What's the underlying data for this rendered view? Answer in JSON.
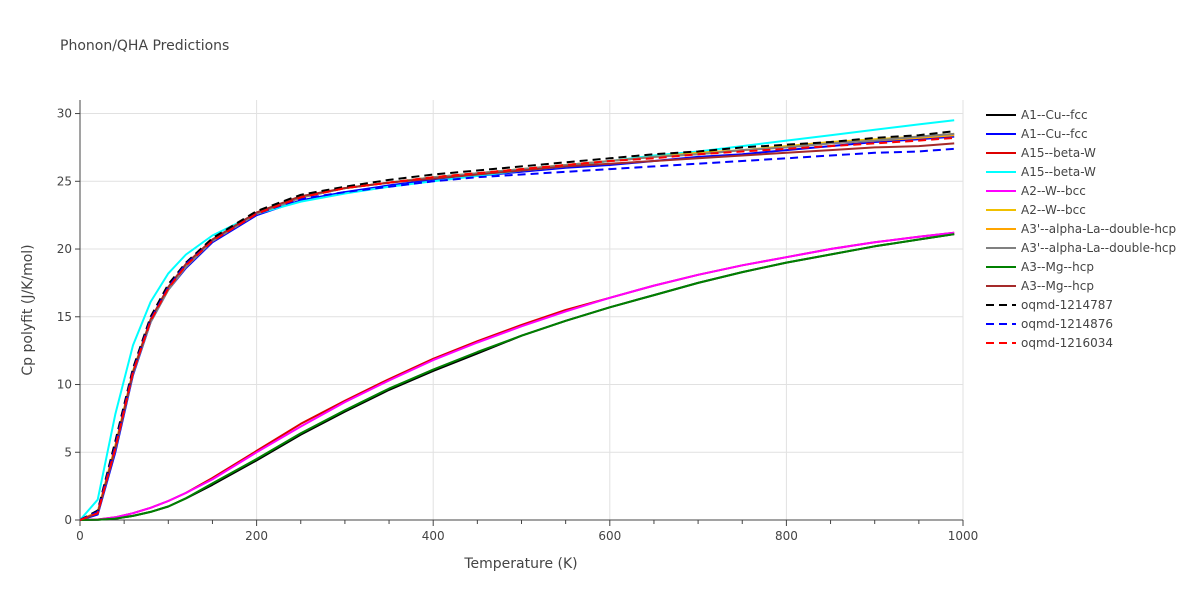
{
  "chart_data": {
    "type": "line",
    "title": "Phonon/QHA Predictions",
    "xlabel": "Temperature (K)",
    "ylabel": "Cp polyfit (J/K/mol)",
    "xlim": [
      0,
      1000
    ],
    "ylim": [
      0,
      31
    ],
    "xticks": [
      0,
      200,
      400,
      600,
      800,
      1000
    ],
    "yticks": [
      0,
      5,
      10,
      15,
      20,
      25,
      30
    ],
    "grid": true,
    "legend_position": "right",
    "series": [
      {
        "name": "A1--Cu--fcc",
        "color": "#000000",
        "dash": "solid",
        "x": [
          0,
          20,
          40,
          60,
          80,
          100,
          120,
          150,
          200,
          250,
          300,
          350,
          400,
          450,
          500,
          550,
          600,
          650,
          700,
          750,
          800,
          850,
          900,
          950,
          990
        ],
        "y": [
          0,
          0.02,
          0.1,
          0.3,
          0.6,
          1.0,
          1.6,
          2.6,
          4.4,
          6.3,
          8.0,
          9.6,
          11.0,
          12.3,
          13.6,
          14.7,
          15.7,
          16.6,
          17.5,
          18.3,
          19.0,
          19.6,
          20.2,
          20.7,
          21.1
        ]
      },
      {
        "name": "A1--Cu--fcc",
        "color": "#0000ff",
        "dash": "solid",
        "x": [
          0,
          20,
          40,
          60,
          80,
          100,
          120,
          150,
          200,
          250,
          300,
          350,
          400,
          450,
          500,
          550,
          600,
          650,
          700,
          750,
          800,
          850,
          900,
          950,
          990
        ],
        "y": [
          0,
          0.4,
          5.0,
          10.7,
          14.6,
          17.0,
          18.6,
          20.5,
          22.5,
          23.6,
          24.2,
          24.7,
          25.1,
          25.4,
          25.7,
          26.0,
          26.2,
          26.5,
          26.8,
          27.0,
          27.3,
          27.6,
          27.9,
          28.1,
          28.3
        ]
      },
      {
        "name": "A15--beta-W",
        "color": "#dd0000",
        "dash": "solid",
        "x": [
          0,
          20,
          40,
          60,
          80,
          100,
          120,
          150,
          200,
          250,
          300,
          350,
          400,
          450,
          500,
          550,
          600,
          650,
          700,
          750,
          800,
          850,
          900,
          950,
          990
        ],
        "y": [
          0,
          0.04,
          0.2,
          0.5,
          0.9,
          1.4,
          2.0,
          3.1,
          5.1,
          7.1,
          8.8,
          10.4,
          11.9,
          13.2,
          14.4,
          15.5,
          16.4,
          17.3,
          18.1,
          18.8,
          19.4,
          20.0,
          20.5,
          20.9,
          21.2
        ]
      },
      {
        "name": "A15--beta-W",
        "color": "#00ffff",
        "dash": "solid",
        "x": [
          0,
          20,
          40,
          60,
          80,
          100,
          120,
          150,
          200,
          250,
          300,
          350,
          400,
          450,
          500,
          550,
          600,
          650,
          700,
          750,
          800,
          850,
          900,
          950,
          990
        ],
        "y": [
          0,
          1.5,
          7.8,
          12.9,
          16.1,
          18.2,
          19.6,
          21.0,
          22.6,
          23.5,
          24.1,
          24.6,
          25.0,
          25.4,
          25.8,
          26.1,
          26.5,
          26.9,
          27.2,
          27.6,
          28.0,
          28.4,
          28.8,
          29.2,
          29.5
        ]
      },
      {
        "name": "A2--W--bcc",
        "color": "#ff00ff",
        "dash": "solid",
        "x": [
          0,
          20,
          40,
          60,
          80,
          100,
          120,
          150,
          200,
          250,
          300,
          350,
          400,
          450,
          500,
          550,
          600,
          650,
          700,
          750,
          800,
          850,
          900,
          950,
          990
        ],
        "y": [
          0,
          0.03,
          0.2,
          0.5,
          0.9,
          1.4,
          2.0,
          3.0,
          5.0,
          6.9,
          8.7,
          10.3,
          11.8,
          13.1,
          14.3,
          15.4,
          16.4,
          17.3,
          18.1,
          18.8,
          19.4,
          20.0,
          20.5,
          20.9,
          21.2
        ]
      },
      {
        "name": "A2--W--bcc",
        "color": "#f0c000",
        "dash": "solid",
        "x": [
          0,
          20,
          40,
          60,
          80,
          100,
          120,
          150,
          200,
          250,
          300,
          350,
          400,
          450,
          500,
          550,
          600,
          650,
          700,
          750,
          800,
          850,
          900,
          950,
          990
        ],
        "y": [
          0,
          0.6,
          5.5,
          11.0,
          14.8,
          17.1,
          18.8,
          20.6,
          22.6,
          23.8,
          24.5,
          24.9,
          25.3,
          25.6,
          25.9,
          26.2,
          26.5,
          26.8,
          27.1,
          27.3,
          27.6,
          27.9,
          28.1,
          28.3,
          28.5
        ]
      },
      {
        "name": "A3'--alpha-La--double-hcp",
        "color": "#ffa500",
        "dash": "solid",
        "x": [
          0,
          20,
          40,
          60,
          80,
          100,
          120,
          150,
          200,
          250,
          300,
          350,
          400,
          450,
          500,
          550,
          600,
          650,
          700,
          750,
          800,
          850,
          900,
          950,
          990
        ],
        "y": [
          0,
          0.6,
          5.4,
          10.9,
          14.7,
          17.0,
          18.7,
          20.6,
          22.6,
          23.8,
          24.5,
          24.9,
          25.3,
          25.6,
          25.9,
          26.2,
          26.5,
          26.8,
          27.0,
          27.3,
          27.5,
          27.8,
          28.0,
          28.2,
          28.4
        ]
      },
      {
        "name": "A3'--alpha-La--double-hcp",
        "color": "#808080",
        "dash": "solid",
        "x": [
          0,
          20,
          40,
          60,
          80,
          100,
          120,
          150,
          200,
          250,
          300,
          350,
          400,
          450,
          500,
          550,
          600,
          650,
          700,
          750,
          800,
          850,
          900,
          950,
          990
        ],
        "y": [
          0,
          0.5,
          5.2,
          10.8,
          14.6,
          17.0,
          18.7,
          20.6,
          22.6,
          23.8,
          24.5,
          24.9,
          25.3,
          25.6,
          25.9,
          26.2,
          26.5,
          26.8,
          27.0,
          27.3,
          27.5,
          27.8,
          28.0,
          28.3,
          28.5
        ]
      },
      {
        "name": "A3--Mg--hcp",
        "color": "#008000",
        "dash": "solid",
        "x": [
          0,
          20,
          40,
          60,
          80,
          100,
          120,
          150,
          200,
          250,
          300,
          350,
          400,
          450,
          500,
          550,
          600,
          650,
          700,
          750,
          800,
          850,
          900,
          950,
          990
        ],
        "y": [
          0,
          0.02,
          0.1,
          0.3,
          0.6,
          1.0,
          1.6,
          2.7,
          4.5,
          6.4,
          8.1,
          9.7,
          11.1,
          12.4,
          13.6,
          14.7,
          15.7,
          16.6,
          17.5,
          18.3,
          19.0,
          19.6,
          20.2,
          20.7,
          21.1
        ]
      },
      {
        "name": "A3--Mg--hcp",
        "color": "#a52a2a",
        "dash": "solid",
        "x": [
          0,
          20,
          40,
          60,
          80,
          100,
          120,
          150,
          200,
          250,
          300,
          350,
          400,
          450,
          500,
          550,
          600,
          650,
          700,
          750,
          800,
          850,
          900,
          950,
          990
        ],
        "y": [
          0,
          0.5,
          5.3,
          10.9,
          14.8,
          17.2,
          18.9,
          20.7,
          22.7,
          23.9,
          24.5,
          24.9,
          25.2,
          25.5,
          25.8,
          26.1,
          26.3,
          26.5,
          26.7,
          26.9,
          27.1,
          27.3,
          27.5,
          27.6,
          27.8
        ]
      },
      {
        "name": "oqmd-1214787",
        "color": "#000000",
        "dash": "dash",
        "x": [
          0,
          20,
          40,
          60,
          80,
          100,
          120,
          150,
          200,
          250,
          300,
          350,
          400,
          450,
          500,
          550,
          600,
          650,
          700,
          750,
          800,
          850,
          900,
          950,
          990
        ],
        "y": [
          0,
          0.7,
          5.8,
          11.2,
          15.0,
          17.4,
          19.0,
          20.8,
          22.8,
          24.0,
          24.6,
          25.1,
          25.5,
          25.8,
          26.1,
          26.4,
          26.7,
          27.0,
          27.2,
          27.5,
          27.7,
          27.9,
          28.2,
          28.4,
          28.7
        ]
      },
      {
        "name": "oqmd-1214876",
        "color": "#0000ff",
        "dash": "dash",
        "x": [
          0,
          20,
          40,
          60,
          80,
          100,
          120,
          150,
          200,
          250,
          300,
          350,
          400,
          450,
          500,
          550,
          600,
          650,
          700,
          750,
          800,
          850,
          900,
          950,
          990
        ],
        "y": [
          0,
          0.6,
          5.5,
          11.0,
          14.8,
          17.2,
          18.9,
          20.6,
          22.6,
          23.7,
          24.2,
          24.6,
          25.0,
          25.3,
          25.5,
          25.7,
          25.9,
          26.1,
          26.3,
          26.5,
          26.7,
          26.9,
          27.1,
          27.2,
          27.4
        ]
      },
      {
        "name": "oqmd-1216034",
        "color": "#ff0000",
        "dash": "dash",
        "x": [
          0,
          20,
          40,
          60,
          80,
          100,
          120,
          150,
          200,
          250,
          300,
          350,
          400,
          450,
          500,
          550,
          600,
          650,
          700,
          750,
          800,
          850,
          900,
          950,
          990
        ],
        "y": [
          0,
          0.5,
          5.3,
          10.9,
          14.7,
          17.1,
          18.8,
          20.6,
          22.6,
          23.8,
          24.5,
          24.9,
          25.3,
          25.6,
          25.9,
          26.2,
          26.5,
          26.7,
          27.0,
          27.2,
          27.4,
          27.6,
          27.8,
          28.0,
          28.2
        ]
      }
    ]
  }
}
